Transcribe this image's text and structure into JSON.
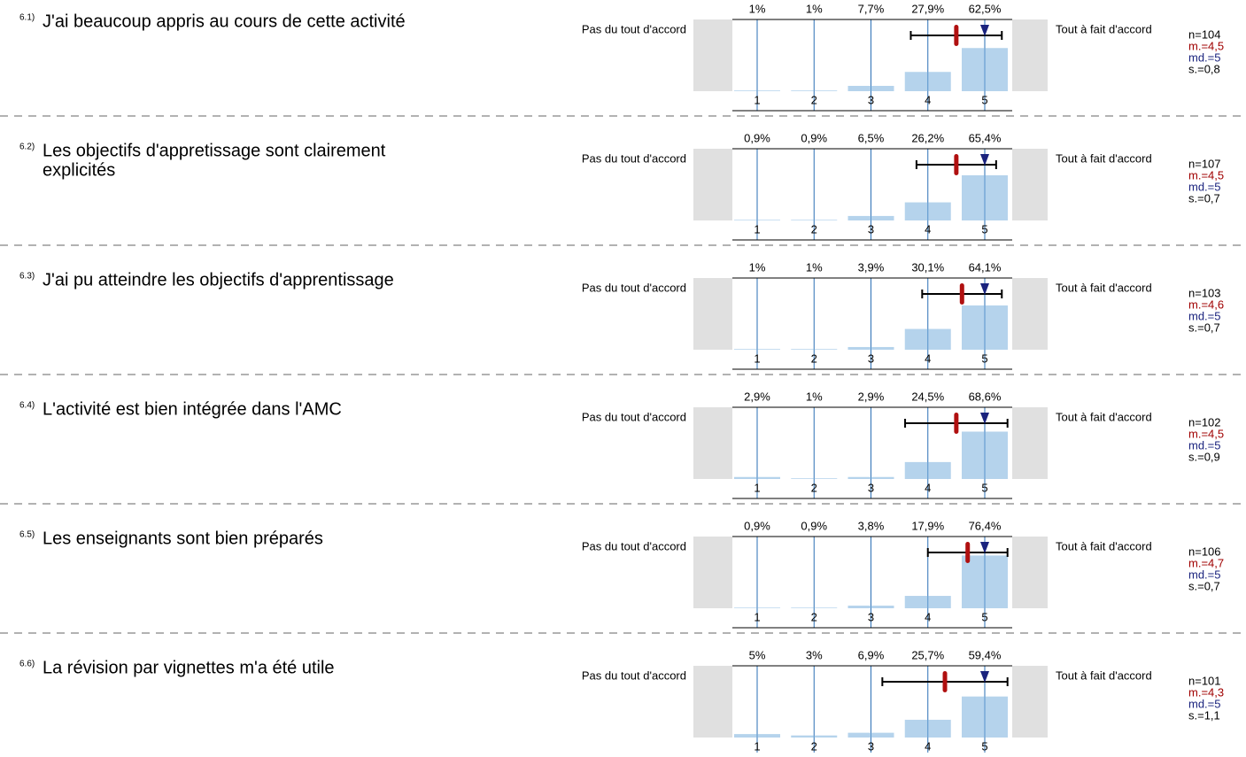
{
  "left_label": "Pas du tout d'accord",
  "right_label": "Tout à fait d'accord",
  "scale": [
    1,
    2,
    3,
    4,
    5
  ],
  "items": [
    {
      "number": "6.1)",
      "question": [
        "J'ai beaucoup appris au cours de cette activité"
      ],
      "percents": [
        1,
        1,
        7.7,
        27.9,
        62.5
      ],
      "percent_labels": [
        "1%",
        "1%",
        "7,7%",
        "27,9%",
        "62,5%"
      ],
      "n_label": "n=104",
      "mean_label": "m.=4,5",
      "median_label": "md.=5",
      "sd_label": "s.=0,8",
      "mean": 4.5,
      "median": 5,
      "sd": 0.8
    },
    {
      "number": "6.2)",
      "question": [
        "Les objectifs d'appretissage sont clairement",
        "explicités"
      ],
      "percents": [
        0.9,
        0.9,
        6.5,
        26.2,
        65.4
      ],
      "percent_labels": [
        "0,9%",
        "0,9%",
        "6,5%",
        "26,2%",
        "65,4%"
      ],
      "n_label": "n=107",
      "mean_label": "m.=4,5",
      "median_label": "md.=5",
      "sd_label": "s.=0,7",
      "mean": 4.5,
      "median": 5,
      "sd": 0.7
    },
    {
      "number": "6.3)",
      "question": [
        "J'ai pu atteindre les objectifs d'apprentissage"
      ],
      "percents": [
        1,
        1,
        3.9,
        30.1,
        64.1
      ],
      "percent_labels": [
        "1%",
        "1%",
        "3,9%",
        "30,1%",
        "64,1%"
      ],
      "n_label": "n=103",
      "mean_label": "m.=4,6",
      "median_label": "md.=5",
      "sd_label": "s.=0,7",
      "mean": 4.6,
      "median": 5,
      "sd": 0.7
    },
    {
      "number": "6.4)",
      "question": [
        "L'activité est bien intégrée dans l'AMC"
      ],
      "percents": [
        2.9,
        1,
        2.9,
        24.5,
        68.6
      ],
      "percent_labels": [
        "2,9%",
        "1%",
        "2,9%",
        "24,5%",
        "68,6%"
      ],
      "n_label": "n=102",
      "mean_label": "m.=4,5",
      "median_label": "md.=5",
      "sd_label": "s.=0,9",
      "mean": 4.5,
      "median": 5,
      "sd": 0.9
    },
    {
      "number": "6.5)",
      "question": [
        "Les enseignants sont bien préparés"
      ],
      "percents": [
        0.9,
        0.9,
        3.8,
        17.9,
        76.4
      ],
      "percent_labels": [
        "0,9%",
        "0,9%",
        "3,8%",
        "17,9%",
        "76,4%"
      ],
      "n_label": "n=106",
      "mean_label": "m.=4,7",
      "median_label": "md.=5",
      "sd_label": "s.=0,7",
      "mean": 4.7,
      "median": 5,
      "sd": 0.7
    },
    {
      "number": "6.6)",
      "question": [
        "La révision par vignettes m'a été utile"
      ],
      "percents": [
        5,
        3,
        6.9,
        25.7,
        59.4
      ],
      "percent_labels": [
        "5%",
        "3%",
        "6,9%",
        "25,7%",
        "59,4%"
      ],
      "n_label": "n=101",
      "mean_label": "m.=4,3",
      "median_label": "md.=5",
      "sd_label": "s.=1,1",
      "mean": 4.3,
      "median": 5,
      "sd": 1.1
    }
  ]
}
